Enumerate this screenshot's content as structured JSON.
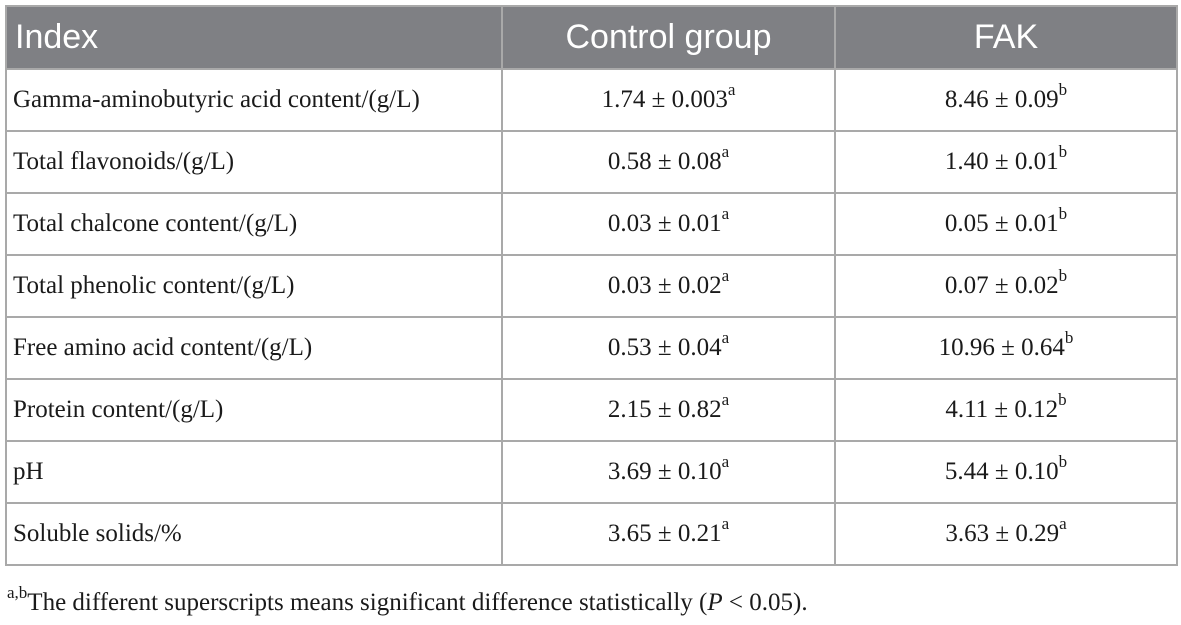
{
  "table": {
    "headers": [
      "Index",
      "Control group",
      "FAK"
    ],
    "rows": [
      {
        "index": "Gamma-aminobutyric acid content/(g/L)",
        "control": "1.74 ± 0.003",
        "control_sup": "a",
        "fak": "8.46 ± 0.09",
        "fak_sup": "b"
      },
      {
        "index": "Total flavonoids/(g/L)",
        "control": "0.58 ± 0.08",
        "control_sup": "a",
        "fak": "1.40 ± 0.01",
        "fak_sup": "b"
      },
      {
        "index": "Total chalcone content/(g/L)",
        "control": "0.03 ± 0.01",
        "control_sup": "a",
        "fak": "0.05 ± 0.01",
        "fak_sup": "b"
      },
      {
        "index": "Total phenolic content/(g/L)",
        "control": "0.03 ± 0.02",
        "control_sup": "a",
        "fak": "0.07 ± 0.02",
        "fak_sup": "b"
      },
      {
        "index": "Free amino acid content/(g/L)",
        "control": "0.53 ± 0.04",
        "control_sup": "a",
        "fak": "10.96 ± 0.64",
        "fak_sup": "b"
      },
      {
        "index": "Protein content/(g/L)",
        "control": "2.15 ± 0.82",
        "control_sup": "a",
        "fak": "4.11 ± 0.12",
        "fak_sup": "b"
      },
      {
        "index": "pH",
        "control": "3.69 ± 0.10",
        "control_sup": "a",
        "fak": "5.44 ± 0.10",
        "fak_sup": "b"
      },
      {
        "index": "Soluble solids/%",
        "control": "3.65 ± 0.21",
        "control_sup": "a",
        "fak": "3.63 ± 0.29",
        "fak_sup": "a"
      }
    ]
  },
  "footnote": {
    "sup": "a,b",
    "text_before": "The different superscripts means significant difference statistically (",
    "p_symbol": "P",
    "text_after": " < 0.05)."
  },
  "colors": {
    "header_bg": "#7f8084",
    "header_text": "#ffffff",
    "border": "#a9a9a9"
  }
}
